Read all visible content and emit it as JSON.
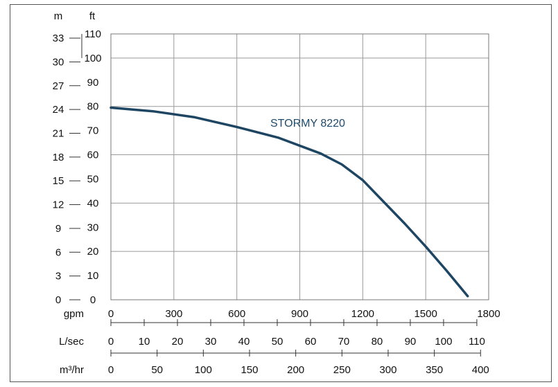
{
  "chart_data": {
    "type": "line",
    "series": [
      {
        "name": "STORMY 8220",
        "color": "#1e4663",
        "x": [
          0,
          200,
          400,
          600,
          800,
          1000,
          1100,
          1200,
          1300,
          1400,
          1500,
          1600,
          1700
        ],
        "y": [
          79.5,
          78.0,
          75.5,
          71.5,
          67.0,
          60.5,
          56.0,
          49.5,
          40.5,
          31.5,
          22.0,
          12.0,
          1.5
        ]
      }
    ],
    "units": {
      "left_outer": "m",
      "left_inner": "ft"
    },
    "y_ft_ticks": [
      "0",
      "10",
      "20",
      "30",
      "40",
      "50",
      "60",
      "70",
      "80",
      "90",
      "100",
      "110"
    ],
    "y_m_ticks": [
      "0",
      "3",
      "6",
      "9",
      "12",
      "15",
      "18",
      "21",
      "24",
      "27",
      "30",
      "33"
    ],
    "ylim_ft": [
      0,
      110
    ],
    "xlim_gpm": [
      0,
      1800
    ],
    "axes": [
      {
        "unit": "gpm",
        "ticks": [
          "0",
          "300",
          "600",
          "900",
          "1200",
          "1500",
          "1800"
        ]
      },
      {
        "unit": "L/sec",
        "ticks": [
          "0",
          "10",
          "20",
          "30",
          "40",
          "50",
          "60",
          "70",
          "80",
          "90",
          "100",
          "110"
        ]
      },
      {
        "unit": "m³/hr",
        "ticks": [
          "0",
          "50",
          "100",
          "150",
          "200",
          "250",
          "300",
          "350",
          "400"
        ]
      }
    ],
    "grid": true
  }
}
